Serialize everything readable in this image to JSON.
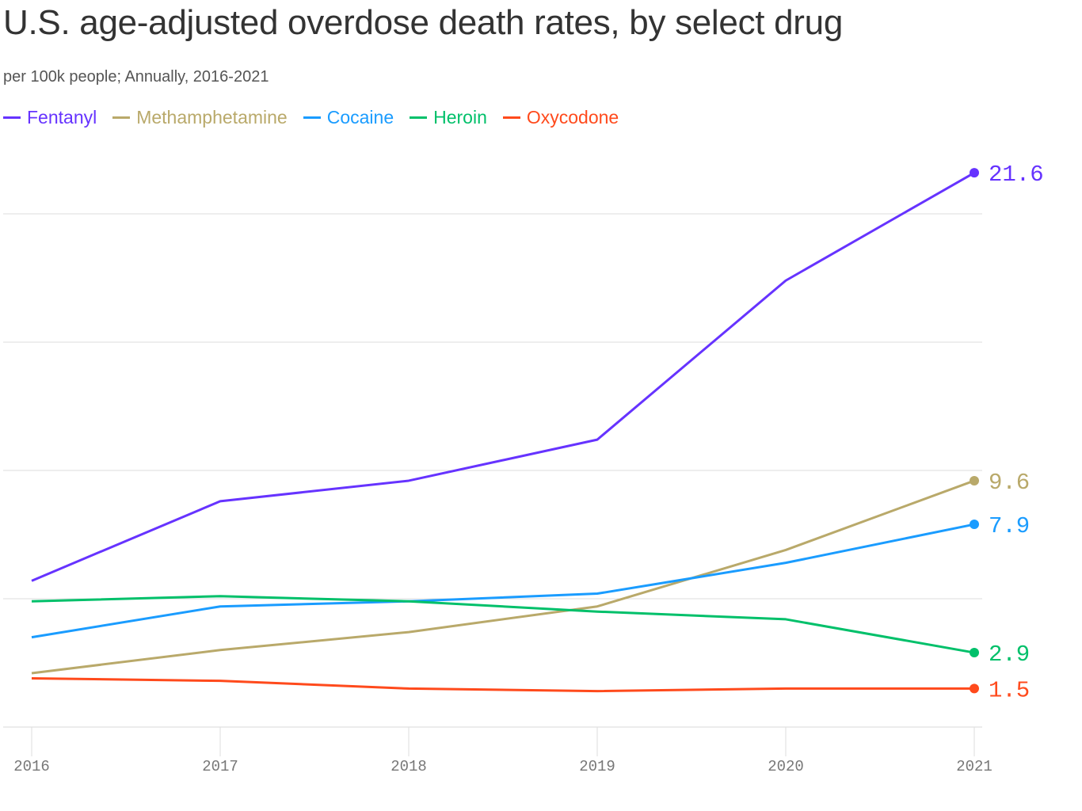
{
  "title": "U.S. age-adjusted overdose death rates, by select drug",
  "subtitle": "per 100k people; Annually, 2016-2021",
  "chart_data": {
    "type": "line",
    "title": "U.S. age-adjusted overdose death rates, by select drug",
    "subtitle": "per 100k people; Annually, 2016-2021",
    "x": [
      2016,
      2017,
      2018,
      2019,
      2020,
      2021
    ],
    "x_tick_labels": [
      "2016",
      "2017",
      "2018",
      "2019",
      "2020",
      "2021"
    ],
    "ylim": [
      0,
      22
    ],
    "y_gridlines": [
      0,
      5,
      10,
      15,
      20
    ],
    "grid": true,
    "legend_placement": "top-left",
    "series": [
      {
        "name": "Fentanyl",
        "color": "#6633ff",
        "values": [
          5.7,
          8.8,
          9.6,
          11.2,
          17.4,
          21.6
        ],
        "end_label": "21.6"
      },
      {
        "name": "Methamphetamine",
        "color": "#b9a96a",
        "values": [
          2.1,
          3.0,
          3.7,
          4.7,
          6.9,
          9.6
        ],
        "end_label": "9.6"
      },
      {
        "name": "Cocaine",
        "color": "#1a9cff",
        "values": [
          3.5,
          4.7,
          4.9,
          5.2,
          6.4,
          7.9
        ],
        "end_label": "7.9"
      },
      {
        "name": "Heroin",
        "color": "#00c06a",
        "values": [
          4.9,
          5.1,
          4.9,
          4.5,
          4.2,
          2.9
        ],
        "end_label": "2.9"
      },
      {
        "name": "Oxycodone",
        "color": "#ff4a1c",
        "values": [
          1.9,
          1.8,
          1.5,
          1.4,
          1.5,
          1.5
        ],
        "end_label": "1.5"
      }
    ]
  }
}
